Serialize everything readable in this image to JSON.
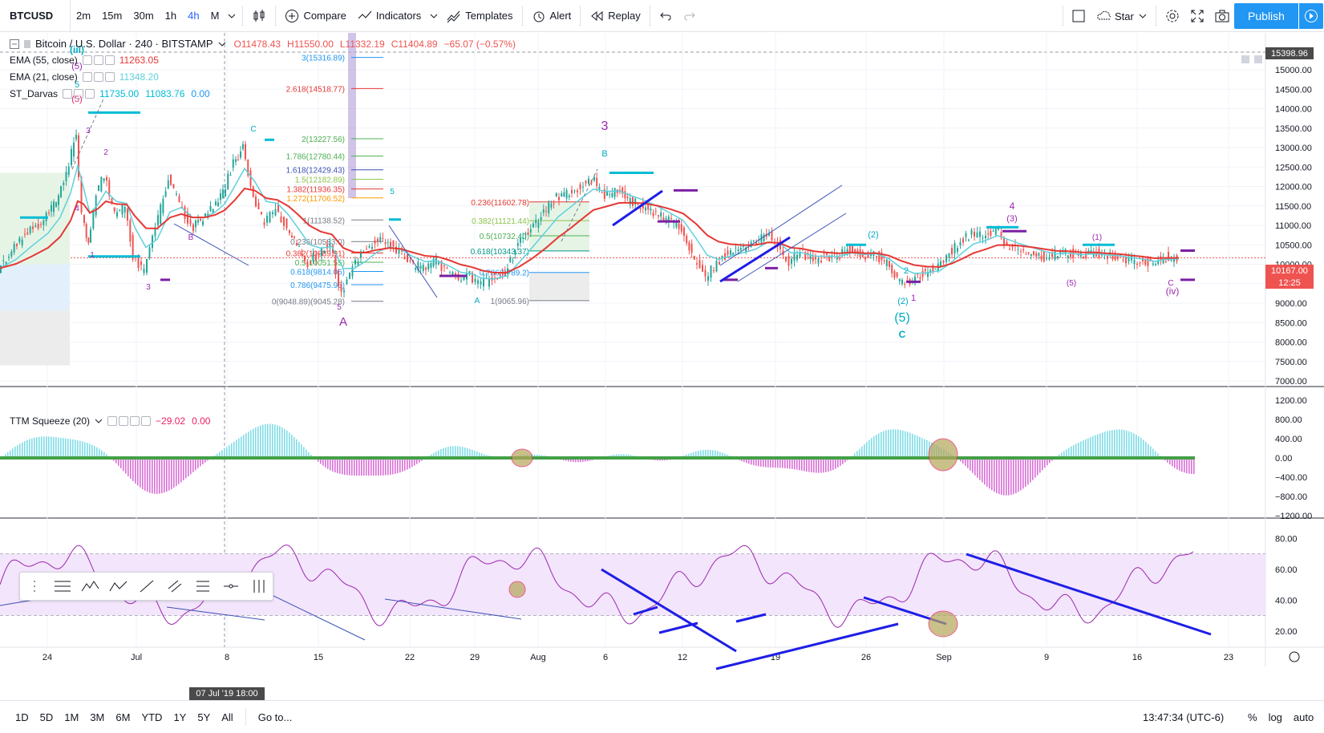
{
  "toolbar": {
    "symbol": "BTCUSD",
    "intervals": [
      "2m",
      "15m",
      "30m",
      "1h",
      "4h",
      "M"
    ],
    "active_interval": "4h",
    "compare": "Compare",
    "indicators": "Indicators",
    "templates": "Templates",
    "alert": "Alert",
    "replay": "Replay",
    "star": "Star",
    "publish": "Publish"
  },
  "legend": {
    "title": "Bitcoin / U.S. Dollar · 240 · BITSTAMP",
    "o": "O11478.43",
    "h": "H11550.00",
    "l": "L11332.19",
    "c": "C11404.89",
    "chg": "−65.07 (−0.57%)",
    "ema55": {
      "name": "EMA (55, close)",
      "value": "11263.05"
    },
    "ema21": {
      "name": "EMA (21, close)",
      "value": "11348.20"
    },
    "darvas": {
      "name": "ST_Darvas",
      "v1": "11735.00",
      "v2": "11083.76",
      "v3": "0.00"
    },
    "ttm": {
      "name": "TTM Squeeze (20)",
      "v1": "−29.02",
      "v2": "0.00"
    }
  },
  "price_axis": {
    "labels": [
      "15000.00",
      "14500.00",
      "14000.00",
      "13500.00",
      "13000.00",
      "12500.00",
      "12000.00",
      "11500.00",
      "11000.00",
      "10500.00",
      "10000.00",
      "9500.00",
      "9000.00",
      "8500.00",
      "8000.00",
      "7500.00",
      "7000.00"
    ],
    "crosshair_price": "15398.96",
    "last_price": "10167.00",
    "countdown": "12:25"
  },
  "ttm_axis": [
    "1200.00",
    "800.00",
    "400.00",
    "0.00",
    "−400.00",
    "−800.00",
    "−1200.00"
  ],
  "rsi_axis": [
    "80.00",
    "60.00",
    "40.00",
    "20.00"
  ],
  "time_axis": [
    "24",
    "Jul",
    "8",
    "15",
    "22",
    "29",
    "Aug",
    "6",
    "12",
    "19",
    "26",
    "Sep",
    "9",
    "16",
    "23"
  ],
  "time_cursor": "07 Jul '19   18:00",
  "fib_left": [
    "3(15316.89)",
    "2.618(14518.77)",
    "2(13227.56)",
    "1.786(12780.44)",
    "1.618(12429.43)",
    "1.5(12182.89)",
    "1.382(11936.35)",
    "1.272(11706.52)",
    "1(11138.52)",
    "0.236(10583.0)",
    "0.382(10289.91)",
    "0.5(10051.55)",
    "0.618(9814.06)",
    "0.786(9475.96)",
    "0(9048.89)(9045.28)"
  ],
  "fib_right": [
    "0.236(11602.78)",
    "0.382(11121.44)",
    "0.5(10732.40)",
    "0.618(10343.37)",
    "0.786(9789.2)",
    "1(9065.96)"
  ],
  "waves": [
    "(iii)",
    "(5)",
    "5",
    "(5)",
    "3",
    "2",
    "4",
    "1",
    "3",
    "5",
    "A",
    "B",
    "C",
    "A",
    "5",
    "3",
    "B",
    "(5)",
    "C",
    "(2)",
    "1",
    "2",
    "4",
    "(3)",
    "(iv)",
    "C",
    "(5)",
    "(1)",
    "(2)",
    "i",
    "(5)",
    "ii",
    "C",
    "A",
    "B"
  ],
  "bottom": {
    "ranges": [
      "1D",
      "5D",
      "1M",
      "3M",
      "6M",
      "YTD",
      "1Y",
      "5Y",
      "All"
    ],
    "goto": "Go to...",
    "clock": "13:47:34 (UTC-6)",
    "pct": "%",
    "log": "log",
    "auto": "auto"
  },
  "colors": {
    "ema55": "#e53935",
    "ema21": "#5fd0dc",
    "up": "#26a69a",
    "down": "#ef5350",
    "accent": "#2196f3",
    "wave_purple": "#9c27b0",
    "wave_teal": "#00acc1",
    "trendline": "#1e1ee6"
  }
}
